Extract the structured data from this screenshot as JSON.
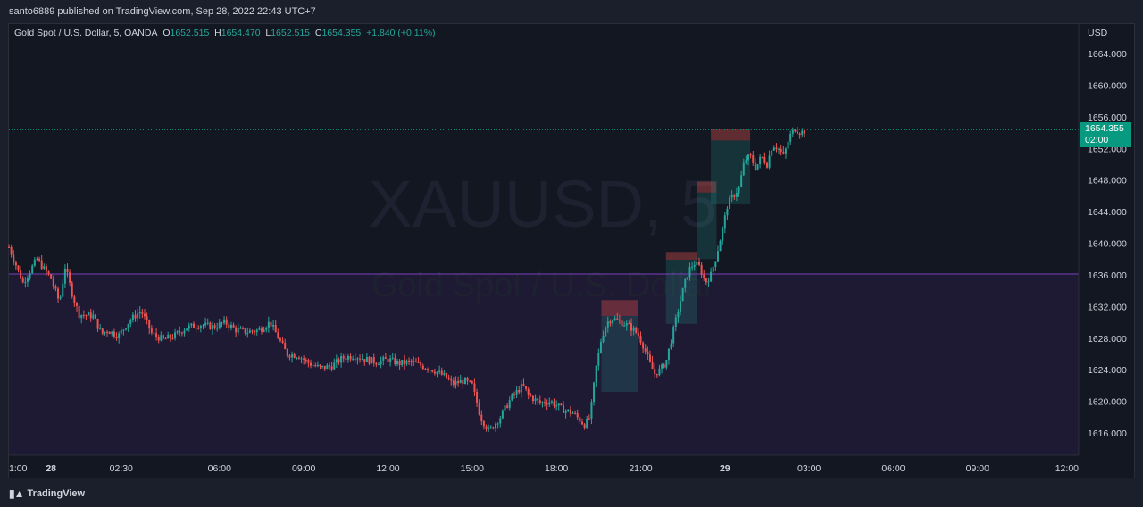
{
  "header": {
    "published_text": "santo6889 published on TradingView.com, Sep 28, 2022 22:43 UTC+7"
  },
  "legend": {
    "symbol": "Gold Spot / U.S. Dollar, 5, OANDA",
    "o_label": "O",
    "o_value": "1652.515",
    "h_label": "H",
    "h_value": "1654.470",
    "l_label": "L",
    "l_value": "1652.515",
    "c_label": "C",
    "c_value": "1654.355",
    "change": "+1.840 (+0.11%)"
  },
  "watermark": {
    "ticker": "XAUUSD, 5",
    "name": "Gold Spot / U.S. Dollar"
  },
  "price_tag": {
    "price": "1654.355",
    "countdown": "02:00"
  },
  "footer": {
    "brand": "TradingView"
  },
  "colors": {
    "up": "#26a69a",
    "down": "#ef5350",
    "background": "#131722",
    "level_line": "#7b3fbf",
    "current_line": "#089981"
  },
  "chart_data": {
    "type": "candlestick",
    "currency_label": "USD",
    "ylim": [
      1611,
      1668
    ],
    "y_ticks": [
      1616,
      1620,
      1624,
      1628,
      1632,
      1636,
      1640,
      1644,
      1648,
      1652,
      1656,
      1660,
      1664
    ],
    "y_tick_labels": [
      "1616.000",
      "1620.000",
      "1624.000",
      "1628.000",
      "1632.000",
      "1636.000",
      "1640.000",
      "1644.000",
      "1648.000",
      "1652.000",
      "1656.000",
      "1660.000",
      "1664.000"
    ],
    "x_tick_labels": [
      "1:00",
      "28",
      "02:30",
      "06:00",
      "09:00",
      "12:00",
      "15:00",
      "18:00",
      "21:00",
      "29",
      "03:00",
      "06:00",
      "09:00",
      "12:00"
    ],
    "x_tick_hours": [
      -1.5,
      0,
      2.5,
      6,
      9,
      12,
      15,
      18,
      21,
      24,
      27,
      30,
      33,
      36
    ],
    "xlim_hours": [
      -1.5,
      36.6
    ],
    "horizontal_level": 1636.1,
    "current_price": 1654.355,
    "path_points": [
      [
        -1.5,
        1639.5
      ],
      [
        -1.0,
        1635.0
      ],
      [
        -0.5,
        1638.0
      ],
      [
        0.0,
        1635.5
      ],
      [
        0.3,
        1632.5
      ],
      [
        0.5,
        1637.0
      ],
      [
        0.8,
        1633.0
      ],
      [
        1.0,
        1631.0
      ],
      [
        1.5,
        1630.8
      ],
      [
        1.8,
        1628.5
      ],
      [
        2.0,
        1629.0
      ],
      [
        2.4,
        1628.3
      ],
      [
        2.8,
        1630.2
      ],
      [
        3.2,
        1631.5
      ],
      [
        3.6,
        1628.5
      ],
      [
        4.0,
        1627.8
      ],
      [
        4.4,
        1628.3
      ],
      [
        4.8,
        1629.3
      ],
      [
        5.3,
        1629.7
      ],
      [
        5.8,
        1629.4
      ],
      [
        6.2,
        1630.0
      ],
      [
        6.6,
        1629.0
      ],
      [
        7.0,
        1628.8
      ],
      [
        7.4,
        1629.0
      ],
      [
        7.8,
        1630.0
      ],
      [
        8.1,
        1628.0
      ],
      [
        8.4,
        1626.0
      ],
      [
        8.8,
        1625.8
      ],
      [
        9.2,
        1624.8
      ],
      [
        9.6,
        1624.2
      ],
      [
        10.0,
        1624.5
      ],
      [
        10.4,
        1625.5
      ],
      [
        10.8,
        1625.8
      ],
      [
        11.2,
        1625.3
      ],
      [
        11.6,
        1625.0
      ],
      [
        12.0,
        1625.3
      ],
      [
        12.4,
        1624.8
      ],
      [
        12.8,
        1625.0
      ],
      [
        13.2,
        1624.5
      ],
      [
        13.6,
        1624.0
      ],
      [
        14.0,
        1623.2
      ],
      [
        14.3,
        1622.2
      ],
      [
        14.7,
        1622.6
      ],
      [
        15.0,
        1622.0
      ],
      [
        15.3,
        1618.0
      ],
      [
        15.6,
        1616.2
      ],
      [
        16.0,
        1618.0
      ],
      [
        16.4,
        1620.5
      ],
      [
        16.8,
        1622.0
      ],
      [
        17.0,
        1620.8
      ],
      [
        17.4,
        1619.8
      ],
      [
        17.8,
        1620.0
      ],
      [
        18.2,
        1619.0
      ],
      [
        18.6,
        1618.5
      ],
      [
        19.0,
        1617.0
      ],
      [
        19.2,
        1618.0
      ],
      [
        19.4,
        1624.0
      ],
      [
        19.6,
        1628.0
      ],
      [
        19.8,
        1630.0
      ],
      [
        20.0,
        1630.5
      ],
      [
        20.3,
        1630.0
      ],
      [
        20.6,
        1629.5
      ],
      [
        20.9,
        1628.5
      ],
      [
        21.1,
        1627.0
      ],
      [
        21.3,
        1625.0
      ],
      [
        21.5,
        1623.5
      ],
      [
        21.7,
        1624.0
      ],
      [
        21.9,
        1625.0
      ],
      [
        22.1,
        1628.0
      ],
      [
        22.3,
        1631.0
      ],
      [
        22.5,
        1634.0
      ],
      [
        22.7,
        1636.5
      ],
      [
        22.9,
        1637.5
      ],
      [
        23.1,
        1637.0
      ],
      [
        23.3,
        1635.0
      ],
      [
        23.5,
        1636.0
      ],
      [
        23.7,
        1638.5
      ],
      [
        23.9,
        1641.5
      ],
      [
        24.1,
        1645.0
      ],
      [
        24.3,
        1646.0
      ],
      [
        24.5,
        1647.0
      ],
      [
        24.7,
        1650.5
      ],
      [
        24.9,
        1651.0
      ],
      [
        25.1,
        1649.5
      ],
      [
        25.3,
        1651.0
      ],
      [
        25.5,
        1650.0
      ],
      [
        25.7,
        1652.5
      ],
      [
        25.9,
        1652.0
      ],
      [
        26.1,
        1651.0
      ],
      [
        26.3,
        1653.5
      ],
      [
        26.5,
        1654.5
      ],
      [
        26.7,
        1654.0
      ],
      [
        26.9,
        1654.355
      ]
    ],
    "positions": [
      {
        "x_start": 19.6,
        "x_end": 20.9,
        "entry": 1630.8,
        "stop": 1632.8,
        "target": 1621.2
      },
      {
        "x_start": 21.9,
        "x_end": 23.0,
        "entry": 1637.9,
        "stop": 1638.9,
        "target": 1629.8
      },
      {
        "x_start": 23.0,
        "x_end": 23.7,
        "entry": 1646.4,
        "stop": 1647.8,
        "target": 1638.0
      },
      {
        "x_start": 23.5,
        "x_end": 24.9,
        "entry": 1653.0,
        "stop": 1654.4,
        "target": 1645.0
      }
    ]
  }
}
